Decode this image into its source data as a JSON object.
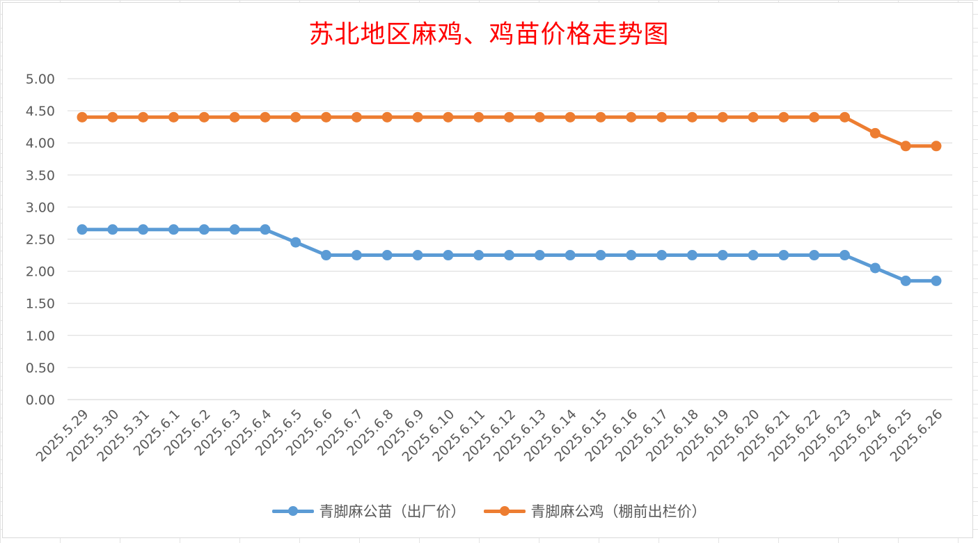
{
  "chart_data": {
    "type": "line",
    "title": "苏北地区麻鸡、鸡苗价格走势图",
    "xlabel": "",
    "ylabel": "",
    "ylim": [
      0,
      5
    ],
    "ytick_step": 0.5,
    "grid": true,
    "legend_position": "bottom",
    "categories": [
      "2025.5.29",
      "2025.5.30",
      "2025.5.31",
      "2025.6.1",
      "2025.6.2",
      "2025.6.3",
      "2025.6.4",
      "2025.6.5",
      "2025.6.6",
      "2025.6.7",
      "2025.6.8",
      "2025.6.9",
      "2025.6.10",
      "2025.6.11",
      "2025.6.12",
      "2025.6.13",
      "2025.6.14",
      "2025.6.15",
      "2025.6.16",
      "2025.6.17",
      "2025.6.18",
      "2025.6.19",
      "2025.6.20",
      "2025.6.21",
      "2025.6.22",
      "2025.6.23",
      "2025.6.24",
      "2025.6.25",
      "2025.6.26"
    ],
    "series": [
      {
        "name": "青脚麻公苗（出厂价）",
        "color": "#5b9bd5",
        "values": [
          2.65,
          2.65,
          2.65,
          2.65,
          2.65,
          2.65,
          2.65,
          2.45,
          2.25,
          2.25,
          2.25,
          2.25,
          2.25,
          2.25,
          2.25,
          2.25,
          2.25,
          2.25,
          2.25,
          2.25,
          2.25,
          2.25,
          2.25,
          2.25,
          2.25,
          2.25,
          2.05,
          1.85,
          1.85
        ]
      },
      {
        "name": "青脚麻公鸡（棚前出栏价）",
        "color": "#ed7d31",
        "values": [
          4.4,
          4.4,
          4.4,
          4.4,
          4.4,
          4.4,
          4.4,
          4.4,
          4.4,
          4.4,
          4.4,
          4.4,
          4.4,
          4.4,
          4.4,
          4.4,
          4.4,
          4.4,
          4.4,
          4.4,
          4.4,
          4.4,
          4.4,
          4.4,
          4.4,
          4.4,
          4.15,
          3.95,
          3.95
        ]
      }
    ]
  }
}
